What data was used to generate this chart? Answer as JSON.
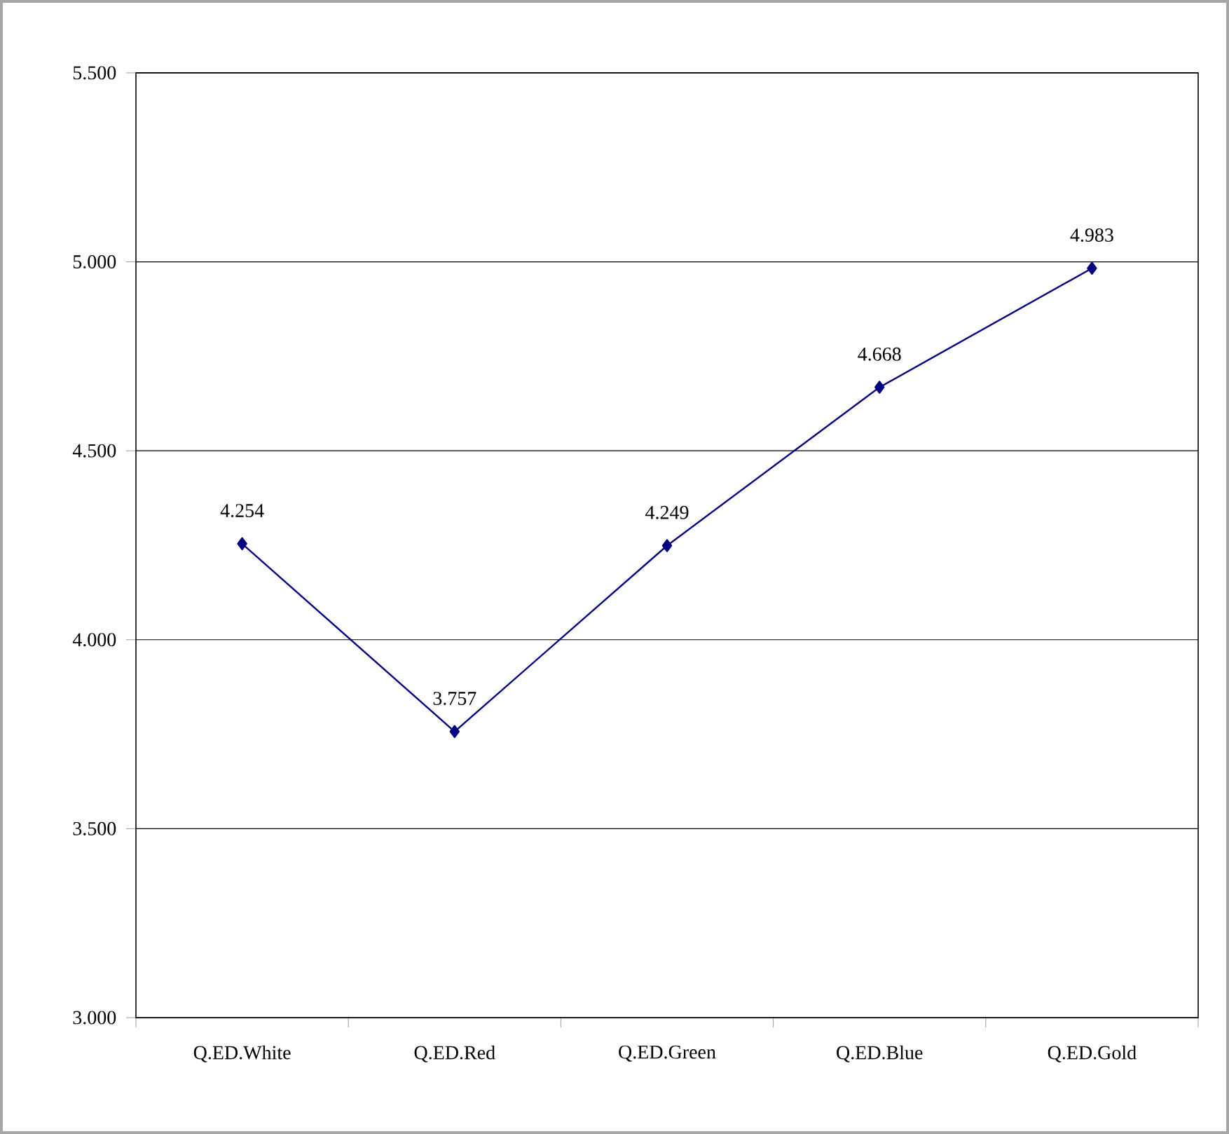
{
  "chart_data": {
    "type": "line",
    "categories": [
      "Q.ED.White",
      "Q.ED.Red",
      "Q.ED.Green",
      "Q.ED.Blue",
      "Q.ED.Gold"
    ],
    "values": [
      4.254,
      3.757,
      4.249,
      4.668,
      4.983
    ],
    "color": "#000080",
    "ylim": [
      3,
      5.5
    ],
    "yticks": [
      {
        "value": 3,
        "label": "3.000"
      },
      {
        "value": 3.5,
        "label": "3.500"
      },
      {
        "value": 4,
        "label": "4.000"
      },
      {
        "value": 4.5,
        "label": "4.500"
      },
      {
        "value": 5,
        "label": "5.000"
      },
      {
        "value": 5.5,
        "label": "5.500"
      }
    ],
    "grid": "y",
    "marker": "diamond",
    "line_style": "solid",
    "data_labels": true
  }
}
